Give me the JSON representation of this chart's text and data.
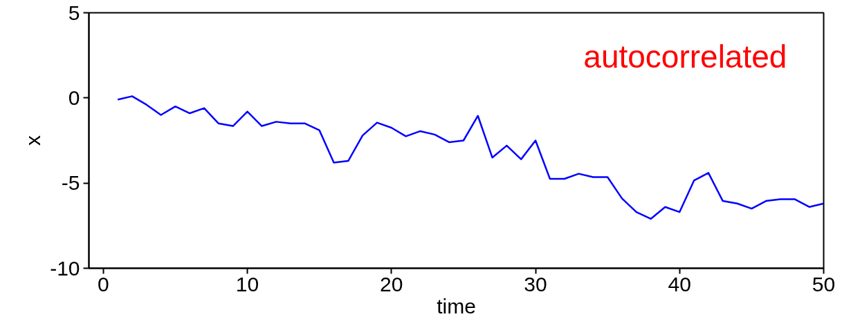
{
  "chart_data": {
    "type": "line",
    "xlabel": "time",
    "ylabel": "x",
    "xlim": [
      -1,
      50
    ],
    "ylim": [
      -10,
      5
    ],
    "xticks": [
      0,
      10,
      20,
      30,
      40,
      50
    ],
    "yticks": [
      -10,
      -5,
      0,
      5
    ],
    "annotations": [
      "autocorrelated"
    ],
    "x": [
      1,
      2,
      3,
      4,
      5,
      6,
      7,
      8,
      9,
      10,
      11,
      12,
      13,
      14,
      15,
      16,
      17,
      18,
      19,
      20,
      21,
      22,
      23,
      24,
      25,
      26,
      27,
      28,
      29,
      30,
      31,
      32,
      33,
      34,
      35,
      36,
      37,
      38,
      39,
      40,
      41,
      42,
      43,
      44,
      45,
      46,
      47,
      48,
      49,
      50
    ],
    "series": [
      {
        "color": "#0000ff",
        "values": [
          -0.1,
          0.1,
          -0.4,
          -1.0,
          -0.5,
          -0.9,
          -0.6,
          -1.5,
          -1.65,
          -0.8,
          -1.65,
          -1.4,
          -1.5,
          -1.5,
          -1.9,
          -3.8,
          -3.7,
          -2.2,
          -1.45,
          -1.75,
          -2.25,
          -1.95,
          -2.15,
          -2.6,
          -2.5,
          -1.05,
          -3.5,
          -2.8,
          -3.6,
          -2.5,
          -4.75,
          -4.75,
          -4.45,
          -4.65,
          -4.65,
          -5.9,
          -6.7,
          -7.1,
          -6.4,
          -6.7,
          -4.85,
          -4.4,
          -6.05,
          -6.2,
          -6.5,
          -6.05,
          -5.95,
          -5.95,
          -6.4,
          -6.2
        ]
      }
    ]
  }
}
